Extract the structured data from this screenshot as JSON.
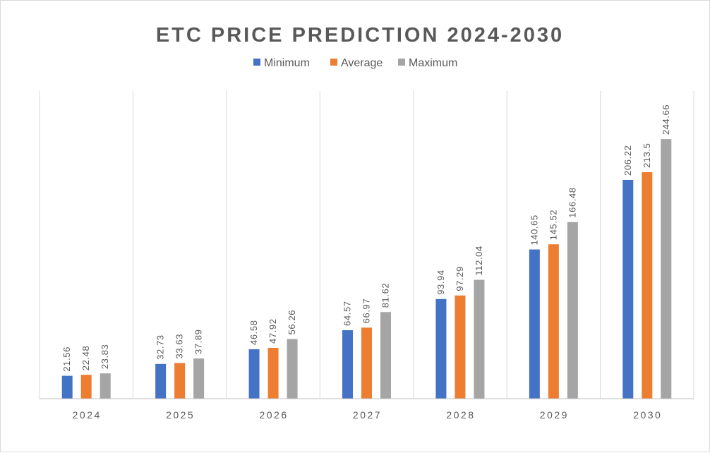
{
  "chart_data": {
    "type": "bar",
    "title": "ETC PRICE PREDICTION 2024-2030",
    "categories": [
      "2024",
      "2025",
      "2026",
      "2027",
      "2028",
      "2029",
      "2030"
    ],
    "series": [
      {
        "name": "Minimum",
        "color": "#4472c4",
        "values": [
          21.56,
          32.73,
          46.58,
          64.57,
          93.94,
          140.65,
          206.22
        ]
      },
      {
        "name": "Average",
        "color": "#ed7d31",
        "values": [
          22.48,
          33.63,
          47.92,
          66.97,
          97.29,
          145.52,
          213.5
        ]
      },
      {
        "name": "Maximum",
        "color": "#a5a5a5",
        "values": [
          23.83,
          37.89,
          56.26,
          81.62,
          112.04,
          166.48,
          244.66
        ]
      }
    ],
    "ylim": [
      0,
      290
    ],
    "legend_position": "top",
    "grid": "vertical category separators",
    "data_labels": "rotated above bars"
  }
}
